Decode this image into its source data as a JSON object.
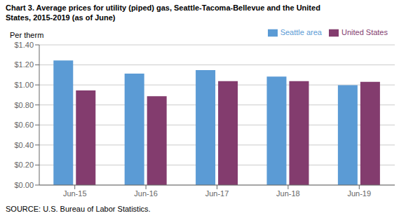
{
  "chart_data": {
    "type": "bar",
    "title": "Chart 3. Average prices for utility (piped) gas, Seattle-Tacoma-Bellevue and the United\nStates, 2015-2019  (as of June)",
    "y_label": "Per therm",
    "source": "SOURCE: U.S. Bureau of Labor Statistics.",
    "categories": [
      "Jun-15",
      "Jun-16",
      "Jun-17",
      "Jun-18",
      "Jun-19"
    ],
    "series": [
      {
        "name": "Seattle area",
        "color": "#5B9BD5",
        "values": [
          1.245,
          1.113,
          1.148,
          1.083,
          0.997
        ]
      },
      {
        "name": "United States",
        "color": "#833C6E",
        "values": [
          0.945,
          0.888,
          1.038,
          1.038,
          1.03
        ]
      }
    ],
    "ylim": [
      0.0,
      1.4
    ],
    "yticks": [
      {
        "value": 0.0,
        "label": "$0.00"
      },
      {
        "value": 0.2,
        "label": "$0.20"
      },
      {
        "value": 0.4,
        "label": "$0.40"
      },
      {
        "value": 0.6,
        "label": "$0.60"
      },
      {
        "value": 0.8,
        "label": "$0.80"
      },
      {
        "value": 1.0,
        "label": "$1.00"
      },
      {
        "value": 1.2,
        "label": "$1.20"
      },
      {
        "value": 1.4,
        "label": "$1.40"
      }
    ],
    "grid": true,
    "legend": "upper right"
  }
}
